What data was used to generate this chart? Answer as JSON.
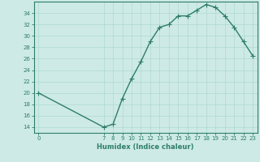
{
  "x": [
    0,
    7,
    8,
    9,
    10,
    11,
    12,
    13,
    14,
    15,
    16,
    17,
    18,
    19,
    20,
    21,
    22,
    23
  ],
  "y": [
    20,
    14,
    14.5,
    19,
    22.5,
    25.5,
    29,
    31.5,
    32,
    33.5,
    33.5,
    34.5,
    35.5,
    35,
    33.5,
    31.5,
    29,
    26.5
  ],
  "x_ticks": [
    0,
    7,
    8,
    9,
    10,
    11,
    12,
    13,
    14,
    15,
    16,
    17,
    18,
    19,
    20,
    21,
    22,
    23
  ],
  "y_ticks": [
    14,
    16,
    18,
    20,
    22,
    24,
    26,
    28,
    30,
    32,
    34
  ],
  "ylim": [
    13,
    36
  ],
  "xlim": [
    -0.5,
    23.5
  ],
  "xlabel": "Humidex (Indice chaleur)",
  "line_color": "#2e7d6b",
  "bg_color": "#cdeae6",
  "grid_color": "#b0d8d2",
  "marker": "+",
  "linewidth": 1.0,
  "markersize": 4,
  "tick_fontsize": 5,
  "label_fontsize": 6
}
